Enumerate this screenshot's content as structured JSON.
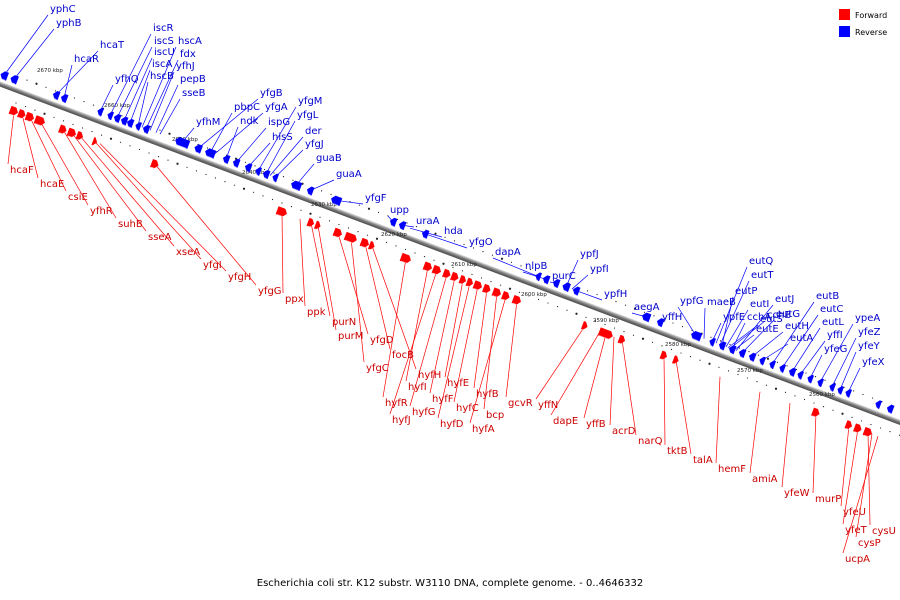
{
  "caption": "Escherichia coli str. K12 substr. W3110 DNA, complete genome. - 0..4646332",
  "legend": [
    {
      "label": "Forward",
      "color": "#ff0000"
    },
    {
      "label": "Reverse",
      "color": "#0000ff"
    }
  ],
  "colors": {
    "forward": "#ff0000",
    "reverse": "#0000ff",
    "forward_text": "#cc0000",
    "reverse_text": "#0000cc",
    "backbone": "#777777"
  },
  "scale_labels": [
    "2670 kbp",
    "2660 kbp",
    "2650 kbp",
    "2640 kbp",
    "2630 kbp",
    "2620 kbp",
    "2610 kbp",
    "2600 kbp",
    "2590 kbp",
    "2580 kbp",
    "2570 kbp",
    "2560 kbp"
  ],
  "forward_genes": [
    "hcaF",
    "hcaE",
    "csiE",
    "yfhR",
    "suhB",
    "sseA",
    "xseA",
    "yfgI",
    "yfgH",
    "yfgG",
    "ppx",
    "ppk",
    "purN",
    "purM",
    "yfgD",
    "yfgC",
    "focB",
    "hyfH",
    "hyfR",
    "hyfI",
    "hyfJ",
    "hyfG",
    "hyfF",
    "hyfE",
    "hyfD",
    "hyfC",
    "hyfB",
    "bcp",
    "hyfA",
    "gcvR",
    "yffN",
    "dapE",
    "yffB",
    "acrD",
    "narQ",
    "tktB",
    "talA",
    "hemF",
    "amiA",
    "yfeW",
    "murP",
    "yfeU",
    "yfeT",
    "cysU",
    "cysP",
    "ucpA"
  ],
  "reverse_genes": [
    "yphC",
    "yphB",
    "hcaT",
    "hcaR",
    "yfhQ",
    "iscR",
    "iscS",
    "iscU",
    "iscA",
    "hscB",
    "hscA",
    "fdx",
    "yfhJ",
    "pepB",
    "sseB",
    "yfhM",
    "yfgB",
    "pbpC",
    "yfgA",
    "ndk",
    "ispG",
    "hisS",
    "yfgM",
    "yfgL",
    "der",
    "yfgJ",
    "guaB",
    "guaA",
    "yfgF",
    "upp",
    "uraA",
    "hda",
    "yfgO",
    "dapA",
    "nlpB",
    "purC",
    "ypfJ",
    "ypfI",
    "ypfH",
    "aegA",
    "yffH",
    "ypfG",
    "maeB",
    "ypfE",
    "eutQ",
    "eutT",
    "eutP",
    "eutI",
    "eutS",
    "cchB",
    "cchA",
    "eutE",
    "eutJ",
    "eutG",
    "eutH",
    "eutA",
    "eutB",
    "eutC",
    "eutL",
    "yffI",
    "yfeG",
    "ypeA",
    "yfeZ",
    "yfeY",
    "yfeX"
  ]
}
